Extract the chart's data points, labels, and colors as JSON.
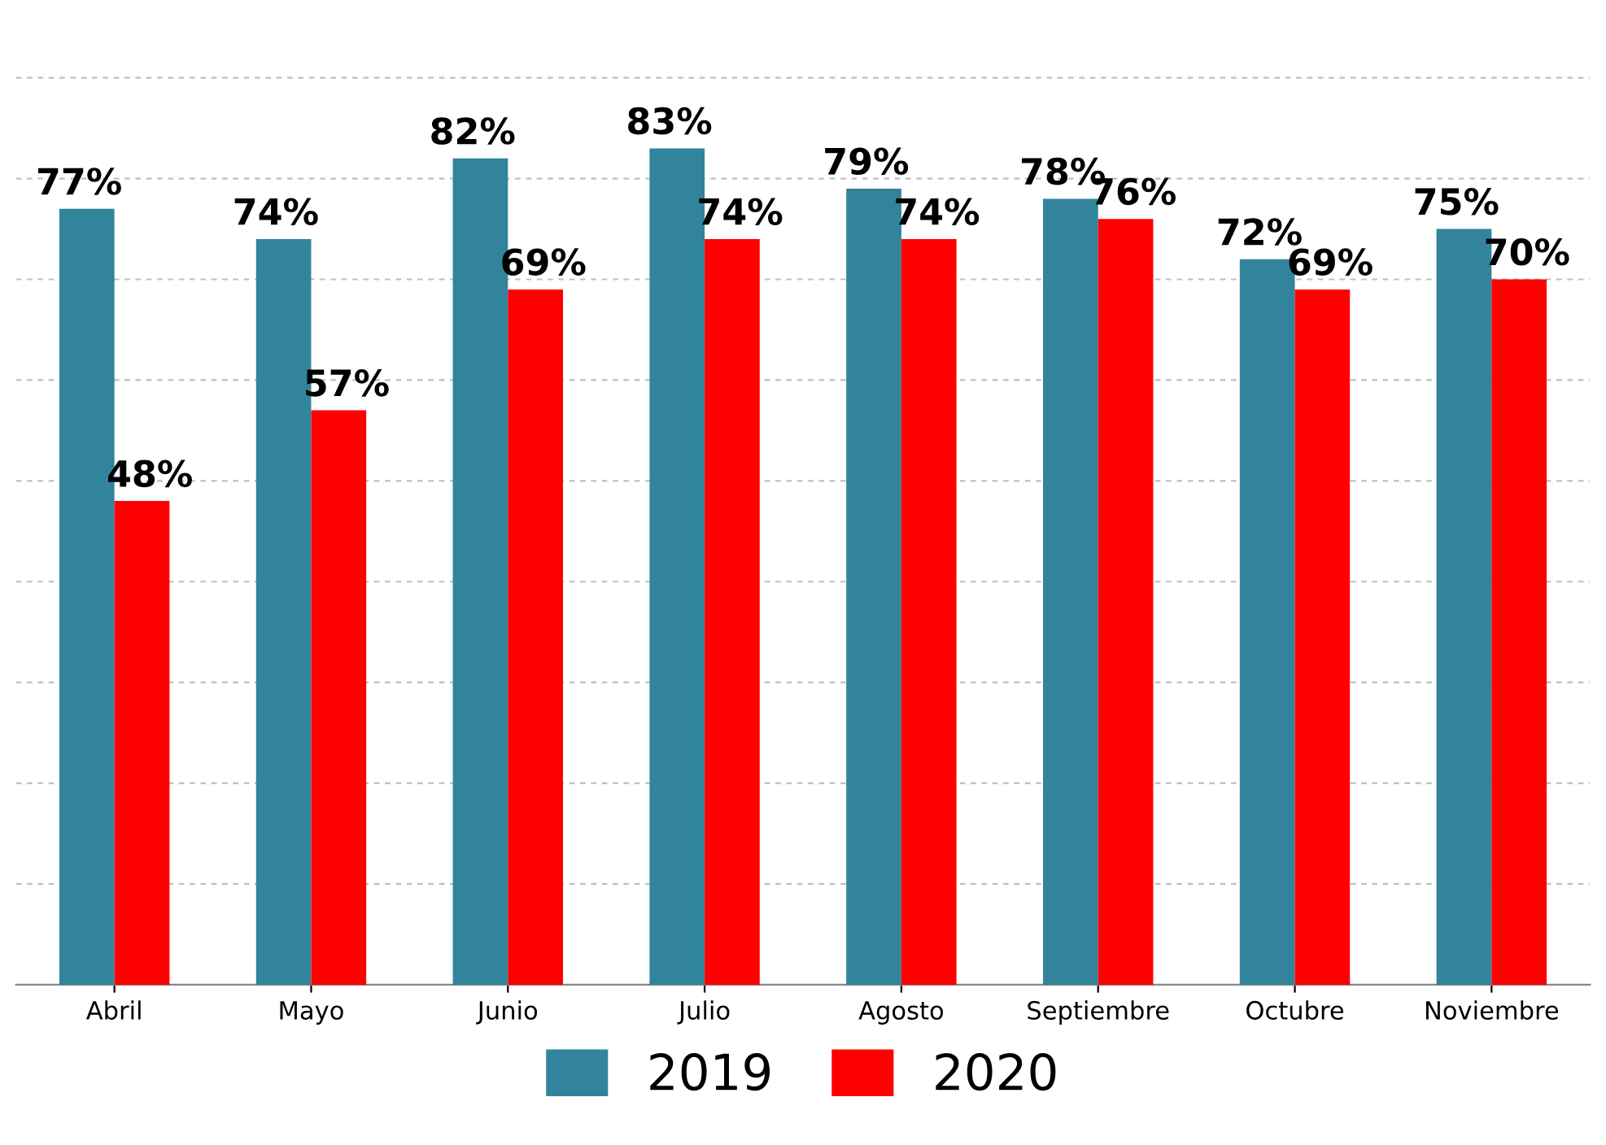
{
  "chart_data": {
    "type": "bar",
    "categories": [
      "Abril",
      "Mayo",
      "Junio",
      "Julio",
      "Agosto",
      "Septiembre",
      "Octubre",
      "Noviembre"
    ],
    "series": [
      {
        "name": "2019",
        "color": "#31849b",
        "values": [
          77,
          74,
          82,
          83,
          79,
          78,
          72,
          75
        ],
        "value_labels": [
          "77%",
          "74%",
          "82%",
          "83%",
          "79%",
          "78%",
          "72%",
          "75%"
        ]
      },
      {
        "name": "2020",
        "color": "#ff0000",
        "values": [
          48,
          57,
          69,
          74,
          74,
          76,
          69,
          70
        ],
        "value_labels": [
          "48%",
          "57%",
          "69%",
          "74%",
          "74%",
          "76%",
          "69%",
          "70%"
        ]
      }
    ],
    "yticks": [
      {
        "value": 10,
        "label": null
      },
      {
        "value": 20,
        "label": null
      },
      {
        "value": 30,
        "label": null
      },
      {
        "value": 40,
        "label": null
      },
      {
        "value": 50,
        "label": null
      },
      {
        "value": 60,
        "label": null
      },
      {
        "value": 70,
        "label": null
      },
      {
        "value": 80,
        "label": null
      },
      {
        "value": 90,
        "label": null
      }
    ],
    "grid": "y",
    "legend": "bottom",
    "tick_labels": "x"
  }
}
